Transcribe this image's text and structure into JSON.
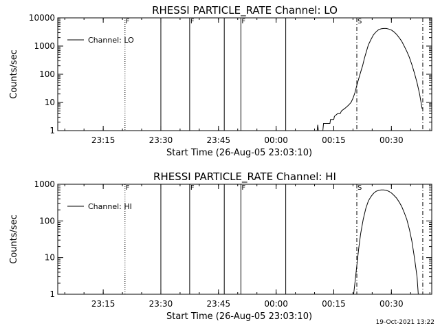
{
  "footer_timestamp": "19-Oct-2021 13:22",
  "chart_data": [
    {
      "type": "line",
      "title": "RHESSI PARTICLE_RATE Channel: LO",
      "xlabel": "Start Time (26-Aug-05 23:03:10)",
      "ylabel": "Counts/sec",
      "yscale": "log",
      "xlim": [
        "23:03:10",
        "00:40:30"
      ],
      "ylim": [
        1,
        10000
      ],
      "x_ticks": [
        "23:15",
        "23:30",
        "23:45",
        "00:00",
        "00:15",
        "00:30"
      ],
      "y_ticks": [
        "1",
        "10",
        "100",
        "1000",
        "10000"
      ],
      "legend": {
        "label": "Channel: LO",
        "placement": "top-left"
      },
      "markers": [
        {
          "time": "23:20:40",
          "label": "F",
          "style": "dotted"
        },
        {
          "time": "23:30:00",
          "label": "",
          "style": "solid"
        },
        {
          "time": "23:37:30",
          "label": "F",
          "style": "solid"
        },
        {
          "time": "23:46:30",
          "label": "",
          "style": "solid"
        },
        {
          "time": "23:50:50",
          "label": "F",
          "style": "solid"
        },
        {
          "time": "00:02:30",
          "label": "",
          "style": "solid"
        },
        {
          "time": "00:21:00",
          "label": "S",
          "style": "dashdot"
        },
        {
          "time": "00:38:10",
          "label": "",
          "style": "dashdot"
        }
      ],
      "series": [
        {
          "name": "Channel: LO",
          "segments": [
            [
              [
                "00:10:40",
                1
              ],
              [
                "00:10:50",
                1.6
              ],
              [
                "00:11:00",
                1
              ]
            ],
            [
              [
                "00:12:10",
                1
              ],
              [
                "00:12:20",
                1.8
              ],
              [
                "00:14:00",
                1.8
              ],
              [
                "00:14:10",
                2.5
              ],
              [
                "00:15:00",
                2.5
              ],
              [
                "00:15:10",
                3.2
              ],
              [
                "00:16:00",
                4
              ],
              [
                "00:16:40",
                4
              ],
              [
                "00:17:00",
                5
              ],
              [
                "00:18:00",
                6.3
              ],
              [
                "00:18:50",
                8
              ],
              [
                "00:19:30",
                10
              ],
              [
                "00:20:00",
                14
              ],
              [
                "00:20:30",
                22
              ],
              [
                "00:21:00",
                40
              ],
              [
                "00:21:30",
                70
              ],
              [
                "00:22:00",
                120
              ],
              [
                "00:22:30",
                200
              ],
              [
                "00:23:00",
                380
              ],
              [
                "00:23:30",
                650
              ],
              [
                "00:24:00",
                1100
              ],
              [
                "00:24:40",
                1700
              ],
              [
                "00:25:20",
                2500
              ],
              [
                "00:26:00",
                3200
              ],
              [
                "00:26:40",
                3800
              ],
              [
                "00:27:20",
                4100
              ],
              [
                "00:28:00",
                4200
              ],
              [
                "00:28:40",
                4200
              ],
              [
                "00:29:20",
                4000
              ],
              [
                "00:30:00",
                3700
              ],
              [
                "00:30:40",
                3200
              ],
              [
                "00:31:20",
                2600
              ],
              [
                "00:32:00",
                2000
              ],
              [
                "00:32:40",
                1500
              ],
              [
                "00:33:20",
                1000
              ],
              [
                "00:34:00",
                650
              ],
              [
                "00:34:40",
                400
              ],
              [
                "00:35:20",
                220
              ],
              [
                "00:36:00",
                110
              ],
              [
                "00:36:40",
                50
              ],
              [
                "00:37:20",
                20
              ],
              [
                "00:38:00",
                6
              ]
            ]
          ]
        }
      ]
    },
    {
      "type": "line",
      "title": "RHESSI PARTICLE_RATE Channel: HI",
      "xlabel": "Start Time (26-Aug-05 23:03:10)",
      "ylabel": "Counts/sec",
      "yscale": "log",
      "xlim": [
        "23:03:10",
        "00:40:30"
      ],
      "ylim": [
        1,
        1000
      ],
      "x_ticks": [
        "23:15",
        "23:30",
        "23:45",
        "00:00",
        "00:15",
        "00:30"
      ],
      "y_ticks": [
        "1",
        "10",
        "100",
        "1000"
      ],
      "legend": {
        "label": "Channel: HI",
        "placement": "top-left"
      },
      "markers": [
        {
          "time": "23:20:40",
          "label": "F",
          "style": "dotted"
        },
        {
          "time": "23:30:00",
          "label": "",
          "style": "solid"
        },
        {
          "time": "23:37:30",
          "label": "F",
          "style": "solid"
        },
        {
          "time": "23:46:30",
          "label": "",
          "style": "solid"
        },
        {
          "time": "23:50:50",
          "label": "F",
          "style": "solid"
        },
        {
          "time": "00:02:30",
          "label": "",
          "style": "solid"
        },
        {
          "time": "00:21:00",
          "label": "S",
          "style": "dashdot"
        },
        {
          "time": "00:38:10",
          "label": "",
          "style": "dashdot"
        }
      ],
      "series": [
        {
          "name": "Channel: HI",
          "segments": [
            [
              [
                "00:20:10",
                1
              ],
              [
                "00:20:30",
                2
              ],
              [
                "00:21:00",
                6
              ],
              [
                "00:21:30",
                18
              ],
              [
                "00:22:00",
                45
              ],
              [
                "00:22:40",
                110
              ],
              [
                "00:23:20",
                220
              ],
              [
                "00:24:00",
                350
              ],
              [
                "00:24:40",
                460
              ],
              [
                "00:25:20",
                560
              ],
              [
                "00:26:00",
                640
              ],
              [
                "00:26:40",
                680
              ],
              [
                "00:27:20",
                700
              ],
              [
                "00:28:00",
                700
              ],
              [
                "00:28:40",
                680
              ],
              [
                "00:29:20",
                640
              ],
              [
                "00:30:00",
                580
              ],
              [
                "00:30:40",
                500
              ],
              [
                "00:31:20",
                420
              ],
              [
                "00:32:00",
                330
              ],
              [
                "00:32:40",
                250
              ],
              [
                "00:33:20",
                170
              ],
              [
                "00:34:00",
                110
              ],
              [
                "00:34:40",
                60
              ],
              [
                "00:35:20",
                28
              ],
              [
                "00:36:00",
                10
              ],
              [
                "00:36:40",
                3
              ],
              [
                "00:37:00",
                1
              ]
            ]
          ]
        }
      ]
    }
  ]
}
